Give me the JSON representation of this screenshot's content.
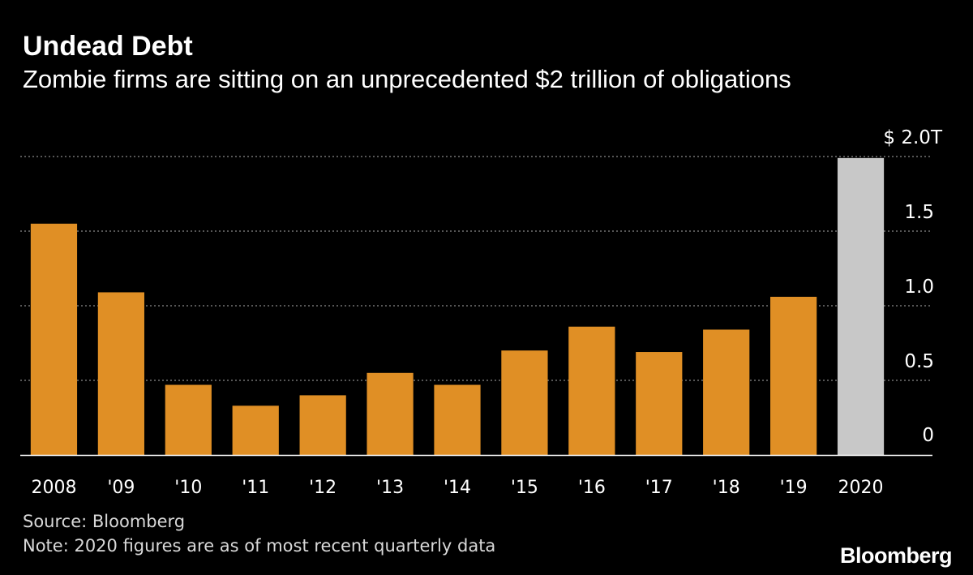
{
  "header": {
    "title": "Undead Debt",
    "subtitle": "Zombie firms are sitting on an unprecedented $2 trillion of obligations"
  },
  "footer": {
    "source": "Source: Bloomberg",
    "note": "Note: 2020 figures are as of most recent quarterly data",
    "logo": "Bloomberg"
  },
  "colors": {
    "background": "#000000",
    "bar": "#e08f25",
    "bar_highlight": "#c8c8c8",
    "gridline": "#8a8a8a",
    "text": "#ffffff",
    "footnote": "#d9d9d9"
  },
  "chart_data": {
    "type": "bar",
    "title": "Undead Debt",
    "subtitle": "Zombie firms are sitting on an unprecedented $2 trillion of obligations",
    "categories": [
      "2008",
      "'09",
      "'10",
      "'11",
      "'12",
      "'13",
      "'14",
      "'15",
      "'16",
      "'17",
      "'18",
      "'19",
      "2020"
    ],
    "values": [
      1.55,
      1.09,
      0.47,
      0.33,
      0.4,
      0.55,
      0.47,
      0.7,
      0.86,
      0.69,
      0.84,
      1.06,
      1.99
    ],
    "highlight_index": 12,
    "xlabel": "",
    "ylabel": "",
    "ylim": [
      0,
      2.0
    ],
    "yticks": [
      0,
      0.5,
      1.0,
      1.5,
      2.0
    ],
    "ytick_labels": [
      "0",
      "0.5",
      "1.0",
      "1.5",
      "$ 2.0T"
    ],
    "grid": true,
    "y_axis_side": "right",
    "legend": "none"
  }
}
